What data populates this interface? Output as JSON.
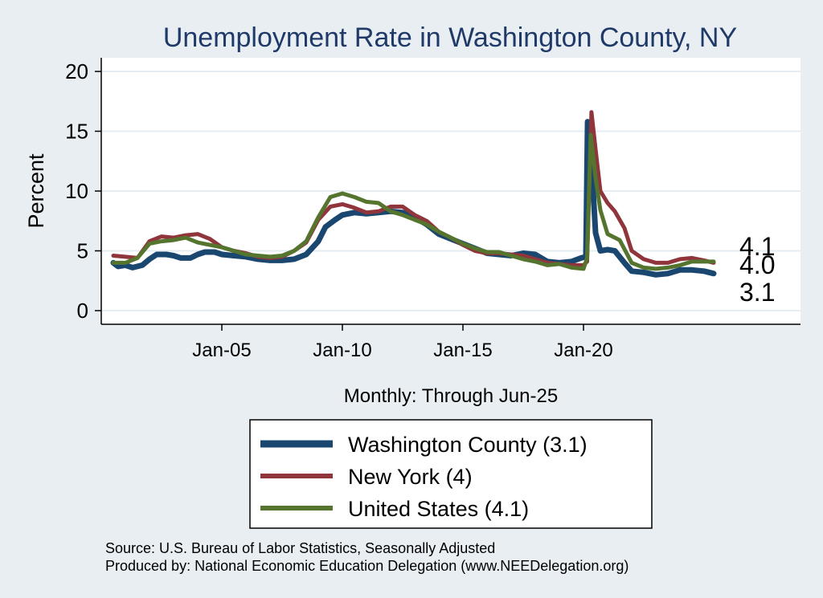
{
  "chart_data": {
    "type": "line",
    "title": "Unemployment Rate in Washington  County, NY",
    "ylabel": "Percent",
    "xlabel": "Monthly: Through Jun-25",
    "ylim": [
      0,
      20
    ],
    "xlim": [
      2000.0,
      2029.0
    ],
    "yticks": [
      0,
      5,
      10,
      15,
      20
    ],
    "xticks": [
      {
        "value": 2005.0,
        "label": "Jan-05"
      },
      {
        "value": 2010.0,
        "label": "Jan-10"
      },
      {
        "value": 2015.0,
        "label": "Jan-15"
      },
      {
        "value": 2020.0,
        "label": "Jan-20"
      }
    ],
    "grid": true,
    "series": [
      {
        "name": "Washington  County",
        "legend_label": "Washington  County (3.1)",
        "color": "#1a476f",
        "last_value_label": "3.1",
        "points": [
          [
            2000.5,
            4.0
          ],
          [
            2000.7,
            3.7
          ],
          [
            2001.0,
            3.8
          ],
          [
            2001.3,
            3.6
          ],
          [
            2001.7,
            3.8
          ],
          [
            2002.0,
            4.3
          ],
          [
            2002.3,
            4.7
          ],
          [
            2002.7,
            4.7
          ],
          [
            2003.0,
            4.6
          ],
          [
            2003.3,
            4.4
          ],
          [
            2003.7,
            4.4
          ],
          [
            2004.0,
            4.7
          ],
          [
            2004.3,
            4.9
          ],
          [
            2004.7,
            4.9
          ],
          [
            2005.0,
            4.7
          ],
          [
            2005.5,
            4.6
          ],
          [
            2006.0,
            4.5
          ],
          [
            2006.5,
            4.3
          ],
          [
            2007.0,
            4.2
          ],
          [
            2007.5,
            4.2
          ],
          [
            2008.0,
            4.3
          ],
          [
            2008.5,
            4.7
          ],
          [
            2009.0,
            5.8
          ],
          [
            2009.3,
            7.0
          ],
          [
            2009.7,
            7.6
          ],
          [
            2010.0,
            8.0
          ],
          [
            2010.5,
            8.2
          ],
          [
            2011.0,
            8.1
          ],
          [
            2011.5,
            8.2
          ],
          [
            2012.0,
            8.3
          ],
          [
            2012.5,
            8.2
          ],
          [
            2013.0,
            7.8
          ],
          [
            2013.5,
            7.2
          ],
          [
            2014.0,
            6.4
          ],
          [
            2014.5,
            6.0
          ],
          [
            2015.0,
            5.6
          ],
          [
            2015.5,
            5.2
          ],
          [
            2016.0,
            4.8
          ],
          [
            2016.5,
            4.7
          ],
          [
            2017.0,
            4.6
          ],
          [
            2017.5,
            4.8
          ],
          [
            2018.0,
            4.7
          ],
          [
            2018.5,
            4.1
          ],
          [
            2019.0,
            4.0
          ],
          [
            2019.5,
            4.1
          ],
          [
            2019.9,
            4.4
          ],
          [
            2020.1,
            4.5
          ],
          [
            2020.17,
            15.8
          ],
          [
            2020.3,
            13.5
          ],
          [
            2020.5,
            6.5
          ],
          [
            2020.7,
            5.0
          ],
          [
            2021.0,
            5.1
          ],
          [
            2021.3,
            5.0
          ],
          [
            2021.7,
            4.0
          ],
          [
            2022.0,
            3.3
          ],
          [
            2022.5,
            3.2
          ],
          [
            2023.0,
            3.0
          ],
          [
            2023.5,
            3.1
          ],
          [
            2024.0,
            3.4
          ],
          [
            2024.5,
            3.4
          ],
          [
            2025.0,
            3.3
          ],
          [
            2025.4,
            3.1
          ]
        ]
      },
      {
        "name": "New York",
        "legend_label": "New York (4)",
        "color": "#90353b",
        "last_value_label": "4.0",
        "points": [
          [
            2000.5,
            4.6
          ],
          [
            2001.0,
            4.5
          ],
          [
            2001.5,
            4.4
          ],
          [
            2002.0,
            5.8
          ],
          [
            2002.5,
            6.2
          ],
          [
            2003.0,
            6.1
          ],
          [
            2003.5,
            6.3
          ],
          [
            2004.0,
            6.4
          ],
          [
            2004.5,
            6.0
          ],
          [
            2005.0,
            5.3
          ],
          [
            2005.5,
            5.0
          ],
          [
            2006.0,
            4.8
          ],
          [
            2006.5,
            4.5
          ],
          [
            2007.0,
            4.4
          ],
          [
            2007.5,
            4.5
          ],
          [
            2008.0,
            5.0
          ],
          [
            2008.5,
            5.7
          ],
          [
            2009.0,
            7.6
          ],
          [
            2009.5,
            8.7
          ],
          [
            2010.0,
            8.9
          ],
          [
            2010.5,
            8.6
          ],
          [
            2011.0,
            8.2
          ],
          [
            2011.5,
            8.3
          ],
          [
            2012.0,
            8.7
          ],
          [
            2012.5,
            8.7
          ],
          [
            2013.0,
            8.0
          ],
          [
            2013.5,
            7.5
          ],
          [
            2014.0,
            6.6
          ],
          [
            2014.5,
            6.1
          ],
          [
            2015.0,
            5.5
          ],
          [
            2015.5,
            5.0
          ],
          [
            2016.0,
            4.8
          ],
          [
            2016.5,
            4.8
          ],
          [
            2017.0,
            4.7
          ],
          [
            2017.5,
            4.6
          ],
          [
            2018.0,
            4.3
          ],
          [
            2018.5,
            4.0
          ],
          [
            2019.0,
            3.9
          ],
          [
            2019.5,
            3.8
          ],
          [
            2020.0,
            3.8
          ],
          [
            2020.15,
            4.1
          ],
          [
            2020.33,
            16.6
          ],
          [
            2020.5,
            13.5
          ],
          [
            2020.7,
            10.0
          ],
          [
            2021.0,
            9.0
          ],
          [
            2021.3,
            8.3
          ],
          [
            2021.7,
            6.9
          ],
          [
            2022.0,
            5.0
          ],
          [
            2022.5,
            4.3
          ],
          [
            2023.0,
            4.0
          ],
          [
            2023.5,
            4.0
          ],
          [
            2024.0,
            4.3
          ],
          [
            2024.5,
            4.4
          ],
          [
            2025.0,
            4.2
          ],
          [
            2025.4,
            4.0
          ]
        ]
      },
      {
        "name": "United States",
        "legend_label": "United States (4.1)",
        "color": "#55752f",
        "last_value_label": "4.1",
        "points": [
          [
            2000.5,
            4.0
          ],
          [
            2001.0,
            4.0
          ],
          [
            2001.5,
            4.4
          ],
          [
            2002.0,
            5.6
          ],
          [
            2002.5,
            5.8
          ],
          [
            2003.0,
            5.9
          ],
          [
            2003.5,
            6.1
          ],
          [
            2004.0,
            5.7
          ],
          [
            2004.5,
            5.5
          ],
          [
            2005.0,
            5.3
          ],
          [
            2005.5,
            5.0
          ],
          [
            2006.0,
            4.7
          ],
          [
            2006.5,
            4.6
          ],
          [
            2007.0,
            4.5
          ],
          [
            2007.5,
            4.6
          ],
          [
            2008.0,
            5.0
          ],
          [
            2008.5,
            5.8
          ],
          [
            2009.0,
            7.8
          ],
          [
            2009.5,
            9.5
          ],
          [
            2010.0,
            9.8
          ],
          [
            2010.5,
            9.5
          ],
          [
            2011.0,
            9.1
          ],
          [
            2011.5,
            9.0
          ],
          [
            2012.0,
            8.3
          ],
          [
            2012.5,
            8.0
          ],
          [
            2013.0,
            7.6
          ],
          [
            2013.5,
            7.2
          ],
          [
            2014.0,
            6.6
          ],
          [
            2014.5,
            6.1
          ],
          [
            2015.0,
            5.6
          ],
          [
            2015.5,
            5.2
          ],
          [
            2016.0,
            4.9
          ],
          [
            2016.5,
            4.9
          ],
          [
            2017.0,
            4.6
          ],
          [
            2017.5,
            4.3
          ],
          [
            2018.0,
            4.1
          ],
          [
            2018.5,
            3.8
          ],
          [
            2019.0,
            3.9
          ],
          [
            2019.5,
            3.6
          ],
          [
            2020.0,
            3.5
          ],
          [
            2020.15,
            4.4
          ],
          [
            2020.3,
            14.7
          ],
          [
            2020.5,
            11.1
          ],
          [
            2020.7,
            8.4
          ],
          [
            2021.0,
            6.4
          ],
          [
            2021.5,
            5.9
          ],
          [
            2022.0,
            4.0
          ],
          [
            2022.5,
            3.6
          ],
          [
            2023.0,
            3.5
          ],
          [
            2023.5,
            3.6
          ],
          [
            2024.0,
            3.8
          ],
          [
            2024.5,
            4.1
          ],
          [
            2025.0,
            4.1
          ],
          [
            2025.4,
            4.1
          ]
        ]
      }
    ]
  },
  "footer": {
    "source": "Source: U.S. Bureau of Labor Statistics, Seasonally Adjusted",
    "producer": "Produced by: National Economic Education Delegation (www.NEEDelegation.org)"
  }
}
